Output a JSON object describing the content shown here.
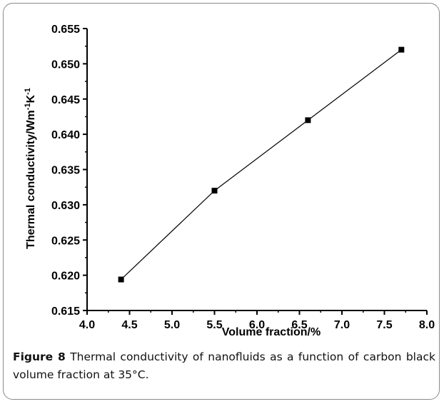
{
  "chart_data": {
    "type": "line",
    "title": "",
    "xlabel": "Volume fraction/%",
    "ylabel_parts": {
      "base": "Thermal conductivity/Wm",
      "sup1": "-1",
      "mid": "K",
      "sup2": "-1"
    },
    "xlim": [
      4.0,
      8.0
    ],
    "ylim": [
      0.615,
      0.655
    ],
    "x_ticks": [
      "4.0",
      "4.5",
      "5.0",
      "5.5",
      "6.0",
      "6.5",
      "7.0",
      "7.5",
      "8.0"
    ],
    "y_ticks": [
      "0.615",
      "0.620",
      "0.625",
      "0.630",
      "0.635",
      "0.640",
      "0.645",
      "0.650",
      "0.655"
    ],
    "grid": false,
    "series": [
      {
        "x": [
          4.4,
          5.5,
          6.6,
          7.7
        ],
        "y": [
          0.6194,
          0.632,
          0.642,
          0.652
        ]
      }
    ]
  },
  "caption": {
    "label": "Figure 8",
    "text": " Thermal conductivity of nanofluids as a function of carbon black volume fraction at 35°C."
  }
}
